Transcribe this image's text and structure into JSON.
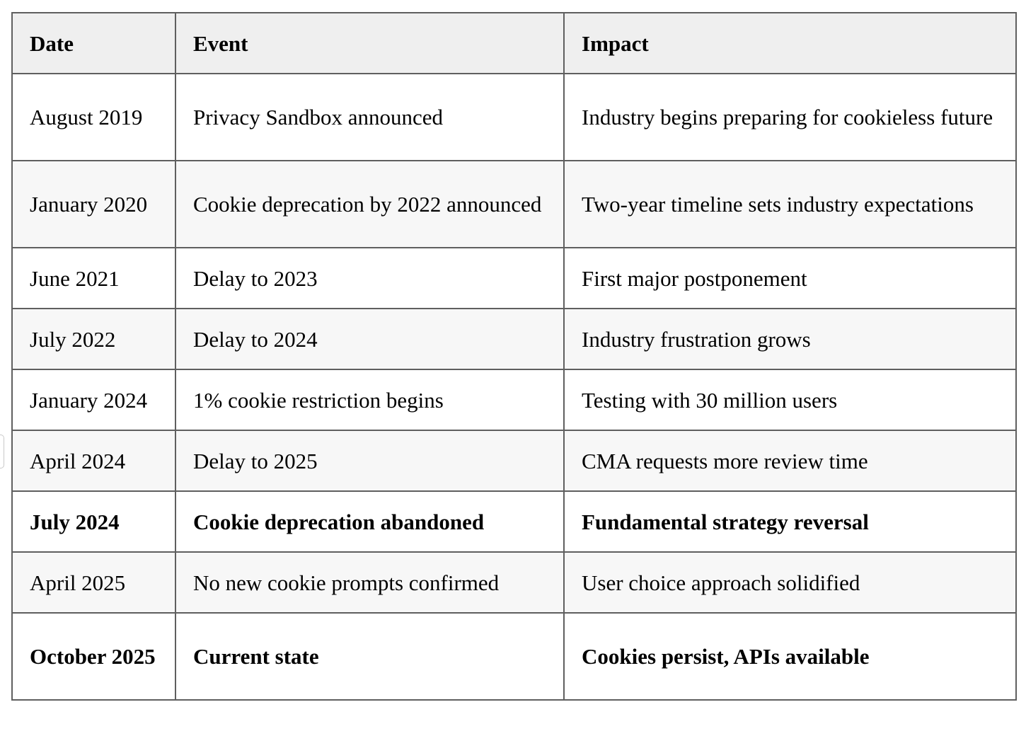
{
  "table": {
    "headers": [
      "Date",
      "Event",
      "Impact"
    ],
    "rows": [
      {
        "date": "August 2019",
        "event": "Privacy Sandbox announced",
        "impact": "Industry begins preparing for cookieless future",
        "bold": false
      },
      {
        "date": "January 2020",
        "event": "Cookie deprecation by 2022 announced",
        "impact": "Two-year timeline sets industry expectations",
        "bold": false
      },
      {
        "date": "June 2021",
        "event": "Delay to 2023",
        "impact": "First major postponement",
        "bold": false
      },
      {
        "date": "July 2022",
        "event": "Delay to 2024",
        "impact": "Industry frustration grows",
        "bold": false
      },
      {
        "date": "January 2024",
        "event": "1% cookie restriction begins",
        "impact": "Testing with 30 million users",
        "bold": false
      },
      {
        "date": "April 2024",
        "event": "Delay to 2025",
        "impact": "CMA requests more review time",
        "bold": false
      },
      {
        "date": "July 2024",
        "event": "Cookie deprecation abandoned",
        "impact": "Fundamental strategy reversal",
        "bold": true
      },
      {
        "date": "April 2025",
        "event": "No new cookie prompts confirmed",
        "impact": "User choice approach solidified",
        "bold": false
      },
      {
        "date": "October 2025",
        "event": "Current state",
        "impact": "Cookies persist, APIs available",
        "bold": true
      }
    ]
  },
  "colors": {
    "header_bg": "#efefef",
    "alt_row_bg": "#f7f7f7",
    "border": "#5f5f5f"
  }
}
